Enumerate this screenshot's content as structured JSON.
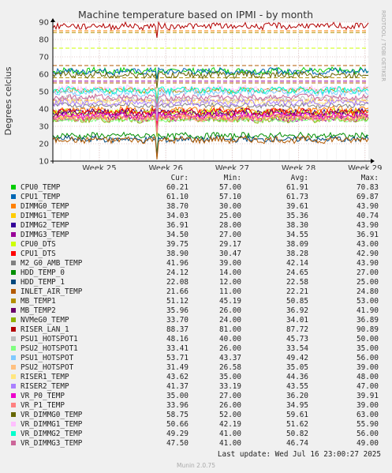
{
  "chart_data": {
    "type": "line",
    "title": "Machine temperature based on IPMI - by month",
    "ylabel": "Degrees celcius",
    "side_label": "RRDTOOL / TOBI OETIKER",
    "ylim": [
      10,
      90
    ],
    "y_ticks": [
      "10",
      "20",
      "30",
      "40",
      "50",
      "60",
      "70",
      "80",
      "90"
    ],
    "x_ticks": [
      "Week 25",
      "Week 26",
      "Week 27",
      "Week 28",
      "Week 29"
    ],
    "x_range_weeks": [
      24.3,
      29.05
    ],
    "x_tick_positions_weeks": [
      25,
      26,
      27,
      28,
      29
    ],
    "dip_week": 25.87,
    "grid": true,
    "legend_headers": [
      "Cur:",
      "Min:",
      "Avg:",
      "Max:"
    ],
    "series": [
      {
        "name": "CPU0_TEMP",
        "color": "#00cc00",
        "cur": "60.21",
        "min": "57.00",
        "avg": "61.91",
        "max": "70.83"
      },
      {
        "name": "CPU1_TEMP",
        "color": "#0066b3",
        "cur": "61.10",
        "min": "57.10",
        "avg": "61.73",
        "max": "69.87"
      },
      {
        "name": "DIMMG0_TEMP",
        "color": "#ff8000",
        "cur": "38.70",
        "min": "30.00",
        "avg": "39.61",
        "max": "43.90"
      },
      {
        "name": "DIMMG1_TEMP",
        "color": "#ffcc00",
        "cur": "34.03",
        "min": "25.00",
        "avg": "35.36",
        "max": "40.74"
      },
      {
        "name": "DIMMG2_TEMP",
        "color": "#330099",
        "cur": "36.91",
        "min": "28.00",
        "avg": "38.30",
        "max": "43.90"
      },
      {
        "name": "DIMMG3_TEMP",
        "color": "#990099",
        "cur": "34.50",
        "min": "27.00",
        "avg": "34.55",
        "max": "36.91"
      },
      {
        "name": "CPU0_DTS",
        "color": "#ccff00",
        "cur": "39.75",
        "min": "29.17",
        "avg": "38.09",
        "max": "43.00"
      },
      {
        "name": "CPU1_DTS",
        "color": "#ff0000",
        "cur": "38.90",
        "min": "30.47",
        "avg": "38.28",
        "max": "42.90"
      },
      {
        "name": "M2_G0_AMB_TEMP",
        "color": "#808080",
        "cur": "41.96",
        "min": "39.00",
        "avg": "42.14",
        "max": "43.90"
      },
      {
        "name": "HDD_TEMP_0",
        "color": "#008f00",
        "cur": "24.12",
        "min": "14.00",
        "avg": "24.65",
        "max": "27.00"
      },
      {
        "name": "HDD_TEMP_1",
        "color": "#00487d",
        "cur": "22.08",
        "min": "12.00",
        "avg": "22.58",
        "max": "25.00"
      },
      {
        "name": "INLET_AIR_TEMP",
        "color": "#b35a00",
        "cur": "21.66",
        "min": "11.00",
        "avg": "22.21",
        "max": "24.80"
      },
      {
        "name": "MB_TEMP1",
        "color": "#b38f00",
        "cur": "51.12",
        "min": "45.19",
        "avg": "50.85",
        "max": "53.00"
      },
      {
        "name": "MB_TEMP2",
        "color": "#6b006b",
        "cur": "35.96",
        "min": "26.00",
        "avg": "36.92",
        "max": "41.90"
      },
      {
        "name": "NVMeG0_TEMP",
        "color": "#8fb300",
        "cur": "33.70",
        "min": "24.00",
        "avg": "34.01",
        "max": "36.89"
      },
      {
        "name": "RISER_LAN_1",
        "color": "#b30000",
        "cur": "88.37",
        "min": "81.00",
        "avg": "87.72",
        "max": "90.89"
      },
      {
        "name": "PSU1_HOTSPOT1",
        "color": "#bebebe",
        "cur": "48.16",
        "min": "40.00",
        "avg": "45.73",
        "max": "50.00"
      },
      {
        "name": "PSU2_HOTSPOT1",
        "color": "#80ff80",
        "cur": "33.41",
        "min": "26.00",
        "avg": "33.54",
        "max": "35.00"
      },
      {
        "name": "PSU1_HOTSPOT",
        "color": "#80c9ff",
        "cur": "53.71",
        "min": "43.37",
        "avg": "49.42",
        "max": "56.00"
      },
      {
        "name": "PSU2_HOTSPOT",
        "color": "#ffc080",
        "cur": "31.49",
        "min": "26.58",
        "avg": "35.05",
        "max": "39.00"
      },
      {
        "name": "RISER1_TEMP",
        "color": "#ffe680",
        "cur": "43.62",
        "min": "35.00",
        "avg": "44.36",
        "max": "48.00"
      },
      {
        "name": "RISER2_TEMP",
        "color": "#aa80ff",
        "cur": "41.37",
        "min": "33.19",
        "avg": "43.55",
        "max": "47.00"
      },
      {
        "name": "VR_P0_TEMP",
        "color": "#ee00cc",
        "cur": "35.00",
        "min": "27.00",
        "avg": "36.20",
        "max": "39.91"
      },
      {
        "name": "VR_P1_TEMP",
        "color": "#ff8080",
        "cur": "33.96",
        "min": "26.00",
        "avg": "34.95",
        "max": "39.00"
      },
      {
        "name": "VR_DIMMG0_TEMP",
        "color": "#666600",
        "cur": "58.75",
        "min": "52.00",
        "avg": "59.61",
        "max": "63.00"
      },
      {
        "name": "VR_DIMMG1_TEMP",
        "color": "#ffbfff",
        "cur": "50.66",
        "min": "42.19",
        "avg": "51.62",
        "max": "55.90"
      },
      {
        "name": "VR_DIMMG2_TEMP",
        "color": "#00ffcc",
        "cur": "49.29",
        "min": "41.00",
        "avg": "50.82",
        "max": "56.00"
      },
      {
        "name": "VR_DIMMG3_TEMP",
        "color": "#cc6699",
        "cur": "47.50",
        "min": "41.00",
        "avg": "46.74",
        "max": "49.00"
      }
    ],
    "threshold_lines": [
      {
        "value": 85,
        "color": "#ff8000"
      },
      {
        "value": 84,
        "color": "#b38f00"
      },
      {
        "value": 75,
        "color": "#ccff00"
      },
      {
        "value": 65,
        "color": "#b35a00"
      },
      {
        "value": 58,
        "color": "#b38f00"
      },
      {
        "value": 56,
        "color": "#990099"
      },
      {
        "value": 55,
        "color": "#b35a00"
      },
      {
        "value": 45,
        "color": "#ff8000"
      }
    ]
  },
  "footer": {
    "last_update": "Last update: Wed Jul 16 23:00:27 2025",
    "munin": "Munin 2.0.75"
  }
}
